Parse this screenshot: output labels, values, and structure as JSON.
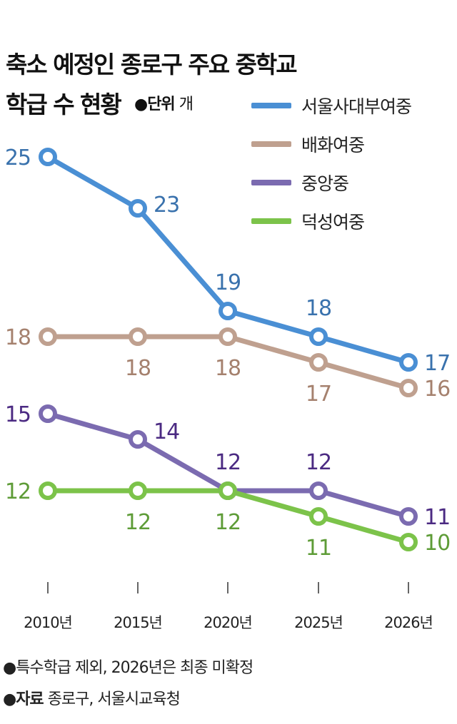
{
  "title_line1": "축소 예정인 종로구 주요 중학교",
  "title_line2": "학급 수 현황",
  "unit_label": "●단위",
  "unit_value": "개",
  "notes": {
    "note1": "●특수학급 제외, 2026년은 최종 미확정",
    "source_label": "●자료",
    "source_value": "종로구, 서울시교육청"
  },
  "chart_data": {
    "type": "line",
    "title": "축소 예정인 종로구 주요 중학교 학급 수 현황",
    "unit": "개",
    "categories": [
      "2010년",
      "2015년",
      "2020년",
      "2025년",
      "2026년"
    ],
    "ylim": [
      10,
      25
    ],
    "grid": false,
    "legend_placement": "top-right",
    "series": [
      {
        "name": "서울사대부여중",
        "values": [
          25,
          23,
          19,
          18,
          17
        ],
        "color": "#4a8fd4",
        "label_color": "#3a72ad"
      },
      {
        "name": "배화여중",
        "values": [
          18,
          18,
          18,
          17,
          16
        ],
        "color": "#bfa08f",
        "label_color": "#a5816e"
      },
      {
        "name": "중앙중",
        "values": [
          15,
          14,
          12,
          12,
          11
        ],
        "color": "#7b6bb0",
        "label_color": "#4b2a82"
      },
      {
        "name": "덕성여중",
        "values": [
          12,
          12,
          12,
          11,
          10
        ],
        "color": "#7cc34a",
        "label_color": "#5e9c37"
      }
    ]
  }
}
